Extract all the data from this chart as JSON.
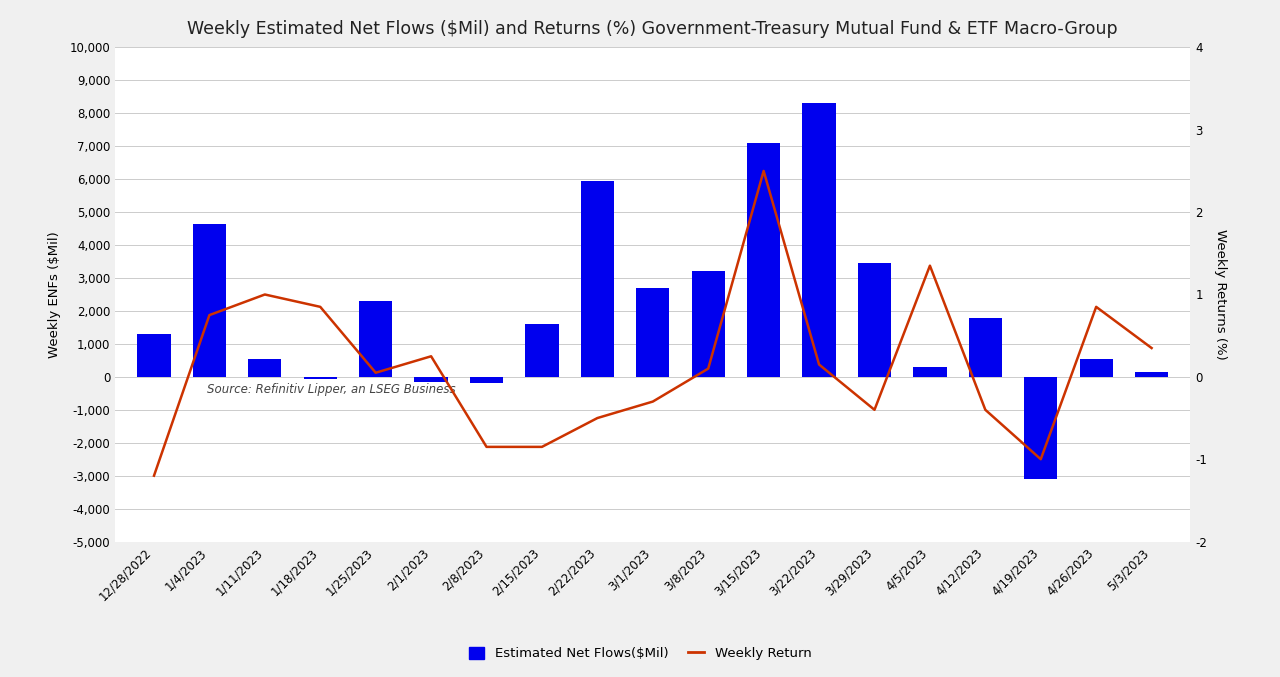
{
  "title": "Weekly Estimated Net Flows ($Mil) and Returns (%) Government-Treasury Mutual Fund & ETF Macro-Group",
  "ylabel_left": "Weekly ENFs ($Mil)",
  "ylabel_right": "Weekly Returns (%)",
  "source_text": "Source: Refinitiv Lipper, an LSEG Business",
  "categories": [
    "12/28/2022",
    "1/4/2023",
    "1/11/2023",
    "1/18/2023",
    "1/25/2023",
    "2/1/2023",
    "2/8/2023",
    "2/15/2023",
    "2/22/2023",
    "3/1/2023",
    "3/8/2023",
    "3/15/2023",
    "3/22/2023",
    "3/29/2023",
    "4/5/2023",
    "4/12/2023",
    "4/19/2023",
    "4/26/2023",
    "5/3/2023"
  ],
  "bar_values": [
    1300,
    4650,
    550,
    -50,
    2300,
    -150,
    -200,
    1600,
    5950,
    2700,
    3200,
    7100,
    8300,
    3450,
    300,
    1800,
    -3100,
    550,
    150
  ],
  "line_values": [
    -1.2,
    0.75,
    1.0,
    0.85,
    0.05,
    0.25,
    -0.85,
    -0.85,
    -0.5,
    -0.3,
    0.1,
    2.5,
    0.15,
    -0.4,
    1.35,
    -0.4,
    -1.0,
    0.85,
    0.35
  ],
  "bar_color": "#0000EE",
  "line_color": "#CC3300",
  "ylim_left": [
    -5000,
    10000
  ],
  "ylim_right": [
    -2,
    4
  ],
  "yticks_left": [
    -5000,
    -4000,
    -3000,
    -2000,
    -1000,
    0,
    1000,
    2000,
    3000,
    4000,
    5000,
    6000,
    7000,
    8000,
    9000,
    10000
  ],
  "yticks_right": [
    -2,
    -1,
    0,
    1,
    2,
    3,
    4
  ],
  "legend_labels": [
    "Estimated Net Flows($Mil)",
    "Weekly Return"
  ],
  "fig_background": "#F0F0F0",
  "plot_background": "#FFFFFF",
  "grid_color": "#CCCCCC",
  "title_fontsize": 12.5,
  "axis_label_fontsize": 9.5,
  "tick_fontsize": 8.5,
  "bar_width": 0.6
}
